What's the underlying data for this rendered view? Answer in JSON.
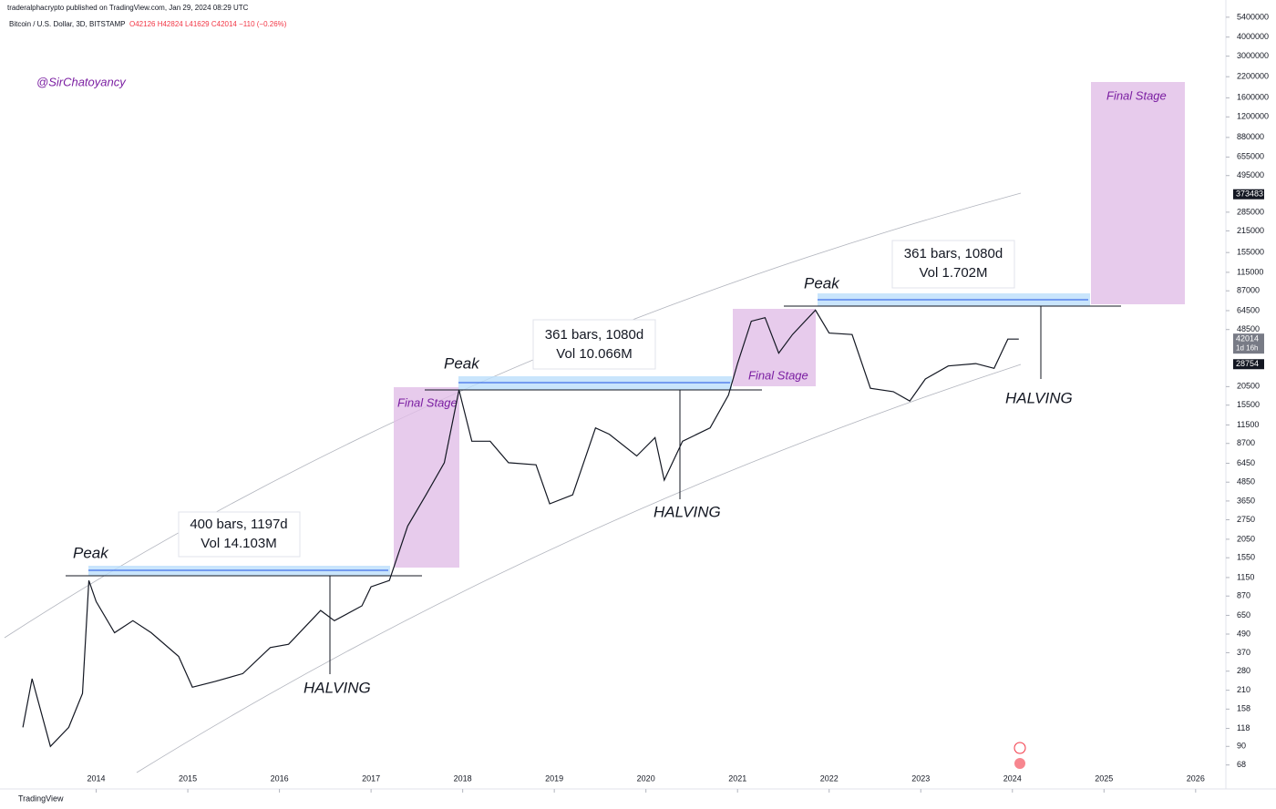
{
  "header": {
    "publisher": "traderalphacrypto published on TradingView.com, Jan 29, 2024 08:29 UTC",
    "symbol": "Bitcoin / U.S. Dollar, 3D, BITSTAMP",
    "ohlc": "O42126 H42824 L41629 C42014 −110 (−0.26%)",
    "watermark": "@SirChatoyancy",
    "footer": "TradingView"
  },
  "annotations": {
    "peaks": [
      "Peak",
      "Peak",
      "Peak"
    ],
    "halvings": [
      "HALVING",
      "HALVING",
      "HALVING"
    ],
    "final_stages": [
      "Final Stage",
      "Final Stage",
      "Final Stage"
    ],
    "ranges": [
      [
        "400 bars, 1197d",
        "Vol 14.103M"
      ],
      [
        "361 bars, 1080d",
        "Vol 10.066M"
      ],
      [
        "361 bars, 1080d",
        "Vol 1.702M"
      ]
    ]
  },
  "chart_data": {
    "type": "line",
    "log_scale": true,
    "color": "#131722",
    "xlim": [
      2012.95,
      2026.33
    ],
    "xticks": [
      2014,
      2015,
      2016,
      2017,
      2018,
      2019,
      2020,
      2021,
      2022,
      2023,
      2024,
      2025,
      2026
    ],
    "ylim": [
      59,
      7000000
    ],
    "yticks": [
      68,
      90,
      118,
      158,
      210,
      280,
      370,
      490,
      650,
      870,
      1150,
      1550,
      2050,
      2750,
      3650,
      4850,
      6450,
      8700,
      11500,
      15500,
      20500,
      48500,
      64500,
      87000,
      115000,
      155000,
      215000,
      285000,
      495000,
      655000,
      880000,
      1200000,
      1600000,
      2200000,
      3000000,
      4000000,
      5400000
    ],
    "price_tags": [
      373483,
      42014,
      28754
    ],
    "countdown": "1d 16h",
    "x": [
      2013.2,
      2013.3,
      2013.5,
      2013.7,
      2013.85,
      2013.92,
      2014.0,
      2014.2,
      2014.4,
      2014.6,
      2014.9,
      2015.05,
      2015.3,
      2015.6,
      2015.9,
      2016.1,
      2016.45,
      2016.6,
      2016.9,
      2017.0,
      2017.2,
      2017.4,
      2017.6,
      2017.8,
      2017.96,
      2018.1,
      2018.3,
      2018.5,
      2018.8,
      2018.95,
      2019.2,
      2019.45,
      2019.6,
      2019.9,
      2020.1,
      2020.2,
      2020.4,
      2020.7,
      2020.9,
      2021.0,
      2021.15,
      2021.3,
      2021.45,
      2021.6,
      2021.85,
      2022.0,
      2022.25,
      2022.45,
      2022.7,
      2022.88,
      2023.05,
      2023.3,
      2023.6,
      2023.8,
      2023.95,
      2024.07
    ],
    "values": [
      120,
      250,
      90,
      120,
      200,
      1100,
      800,
      500,
      600,
      500,
      350,
      220,
      240,
      270,
      400,
      420,
      700,
      600,
      750,
      1000,
      1100,
      2500,
      4000,
      6500,
      19500,
      9000,
      9000,
      6500,
      6300,
      3500,
      4000,
      11000,
      10000,
      7200,
      9500,
      5000,
      9000,
      11000,
      18000,
      29000,
      55000,
      58000,
      34000,
      45000,
      65000,
      46000,
      45000,
      20000,
      19000,
      16500,
      23000,
      28000,
      29000,
      27000,
      42000,
      42014
    ]
  }
}
